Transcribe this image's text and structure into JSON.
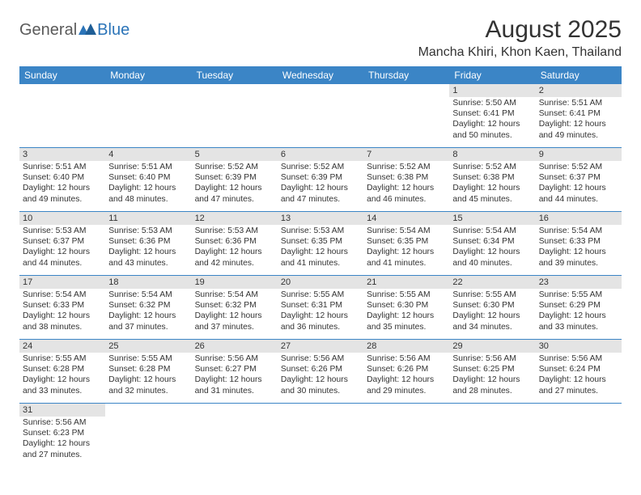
{
  "logo": {
    "text1": "General",
    "text2": "Blue"
  },
  "title": "August 2025",
  "location": "Mancha Khiri, Khon Kaen, Thailand",
  "header_bg": "#3b85c6",
  "daynum_bg": "#e4e4e4",
  "weekdays": [
    "Sunday",
    "Monday",
    "Tuesday",
    "Wednesday",
    "Thursday",
    "Friday",
    "Saturday"
  ],
  "weeks": [
    [
      null,
      null,
      null,
      null,
      null,
      {
        "n": "1",
        "sr": "5:50 AM",
        "ss": "6:41 PM",
        "dl": "12 hours and 50 minutes."
      },
      {
        "n": "2",
        "sr": "5:51 AM",
        "ss": "6:41 PM",
        "dl": "12 hours and 49 minutes."
      }
    ],
    [
      {
        "n": "3",
        "sr": "5:51 AM",
        "ss": "6:40 PM",
        "dl": "12 hours and 49 minutes."
      },
      {
        "n": "4",
        "sr": "5:51 AM",
        "ss": "6:40 PM",
        "dl": "12 hours and 48 minutes."
      },
      {
        "n": "5",
        "sr": "5:52 AM",
        "ss": "6:39 PM",
        "dl": "12 hours and 47 minutes."
      },
      {
        "n": "6",
        "sr": "5:52 AM",
        "ss": "6:39 PM",
        "dl": "12 hours and 47 minutes."
      },
      {
        "n": "7",
        "sr": "5:52 AM",
        "ss": "6:38 PM",
        "dl": "12 hours and 46 minutes."
      },
      {
        "n": "8",
        "sr": "5:52 AM",
        "ss": "6:38 PM",
        "dl": "12 hours and 45 minutes."
      },
      {
        "n": "9",
        "sr": "5:52 AM",
        "ss": "6:37 PM",
        "dl": "12 hours and 44 minutes."
      }
    ],
    [
      {
        "n": "10",
        "sr": "5:53 AM",
        "ss": "6:37 PM",
        "dl": "12 hours and 44 minutes."
      },
      {
        "n": "11",
        "sr": "5:53 AM",
        "ss": "6:36 PM",
        "dl": "12 hours and 43 minutes."
      },
      {
        "n": "12",
        "sr": "5:53 AM",
        "ss": "6:36 PM",
        "dl": "12 hours and 42 minutes."
      },
      {
        "n": "13",
        "sr": "5:53 AM",
        "ss": "6:35 PM",
        "dl": "12 hours and 41 minutes."
      },
      {
        "n": "14",
        "sr": "5:54 AM",
        "ss": "6:35 PM",
        "dl": "12 hours and 41 minutes."
      },
      {
        "n": "15",
        "sr": "5:54 AM",
        "ss": "6:34 PM",
        "dl": "12 hours and 40 minutes."
      },
      {
        "n": "16",
        "sr": "5:54 AM",
        "ss": "6:33 PM",
        "dl": "12 hours and 39 minutes."
      }
    ],
    [
      {
        "n": "17",
        "sr": "5:54 AM",
        "ss": "6:33 PM",
        "dl": "12 hours and 38 minutes."
      },
      {
        "n": "18",
        "sr": "5:54 AM",
        "ss": "6:32 PM",
        "dl": "12 hours and 37 minutes."
      },
      {
        "n": "19",
        "sr": "5:54 AM",
        "ss": "6:32 PM",
        "dl": "12 hours and 37 minutes."
      },
      {
        "n": "20",
        "sr": "5:55 AM",
        "ss": "6:31 PM",
        "dl": "12 hours and 36 minutes."
      },
      {
        "n": "21",
        "sr": "5:55 AM",
        "ss": "6:30 PM",
        "dl": "12 hours and 35 minutes."
      },
      {
        "n": "22",
        "sr": "5:55 AM",
        "ss": "6:30 PM",
        "dl": "12 hours and 34 minutes."
      },
      {
        "n": "23",
        "sr": "5:55 AM",
        "ss": "6:29 PM",
        "dl": "12 hours and 33 minutes."
      }
    ],
    [
      {
        "n": "24",
        "sr": "5:55 AM",
        "ss": "6:28 PM",
        "dl": "12 hours and 33 minutes."
      },
      {
        "n": "25",
        "sr": "5:55 AM",
        "ss": "6:28 PM",
        "dl": "12 hours and 32 minutes."
      },
      {
        "n": "26",
        "sr": "5:56 AM",
        "ss": "6:27 PM",
        "dl": "12 hours and 31 minutes."
      },
      {
        "n": "27",
        "sr": "5:56 AM",
        "ss": "6:26 PM",
        "dl": "12 hours and 30 minutes."
      },
      {
        "n": "28",
        "sr": "5:56 AM",
        "ss": "6:26 PM",
        "dl": "12 hours and 29 minutes."
      },
      {
        "n": "29",
        "sr": "5:56 AM",
        "ss": "6:25 PM",
        "dl": "12 hours and 28 minutes."
      },
      {
        "n": "30",
        "sr": "5:56 AM",
        "ss": "6:24 PM",
        "dl": "12 hours and 27 minutes."
      }
    ],
    [
      {
        "n": "31",
        "sr": "5:56 AM",
        "ss": "6:23 PM",
        "dl": "12 hours and 27 minutes."
      },
      null,
      null,
      null,
      null,
      null,
      null
    ]
  ],
  "labels": {
    "sunrise": "Sunrise:",
    "sunset": "Sunset:",
    "daylight": "Daylight:"
  }
}
